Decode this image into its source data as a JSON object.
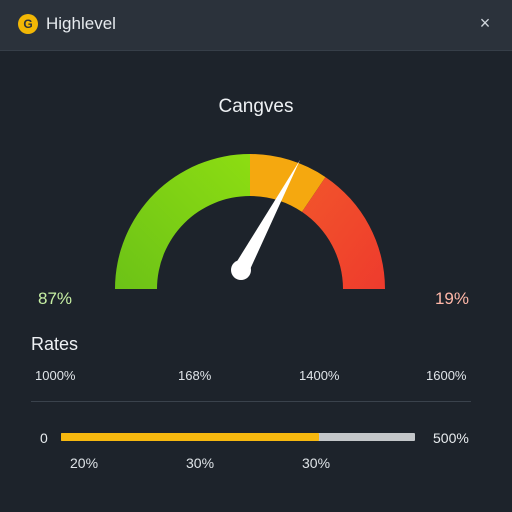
{
  "window": {
    "title": "Highlevel",
    "logo_glyph": "G",
    "close_icon": "×"
  },
  "gauge": {
    "title": "Cangves",
    "left_value": "87%",
    "right_value": "19%",
    "colors": {
      "green": "#7ed321",
      "orange": "#f5a80f",
      "red": "#f04a2c",
      "needle": "#ffffff"
    }
  },
  "rates": {
    "label": "Rates",
    "scale_ticks": [
      "1000%",
      "168%",
      "1400%",
      "1600%"
    ],
    "bar": {
      "start_label": "0",
      "end_label": "500%",
      "fill_fraction": 0.73,
      "fill_color": "#f7b80f",
      "track_color": "#c3c6c9"
    },
    "bottom_ticks": [
      "20%",
      "30%",
      "30%"
    ]
  }
}
